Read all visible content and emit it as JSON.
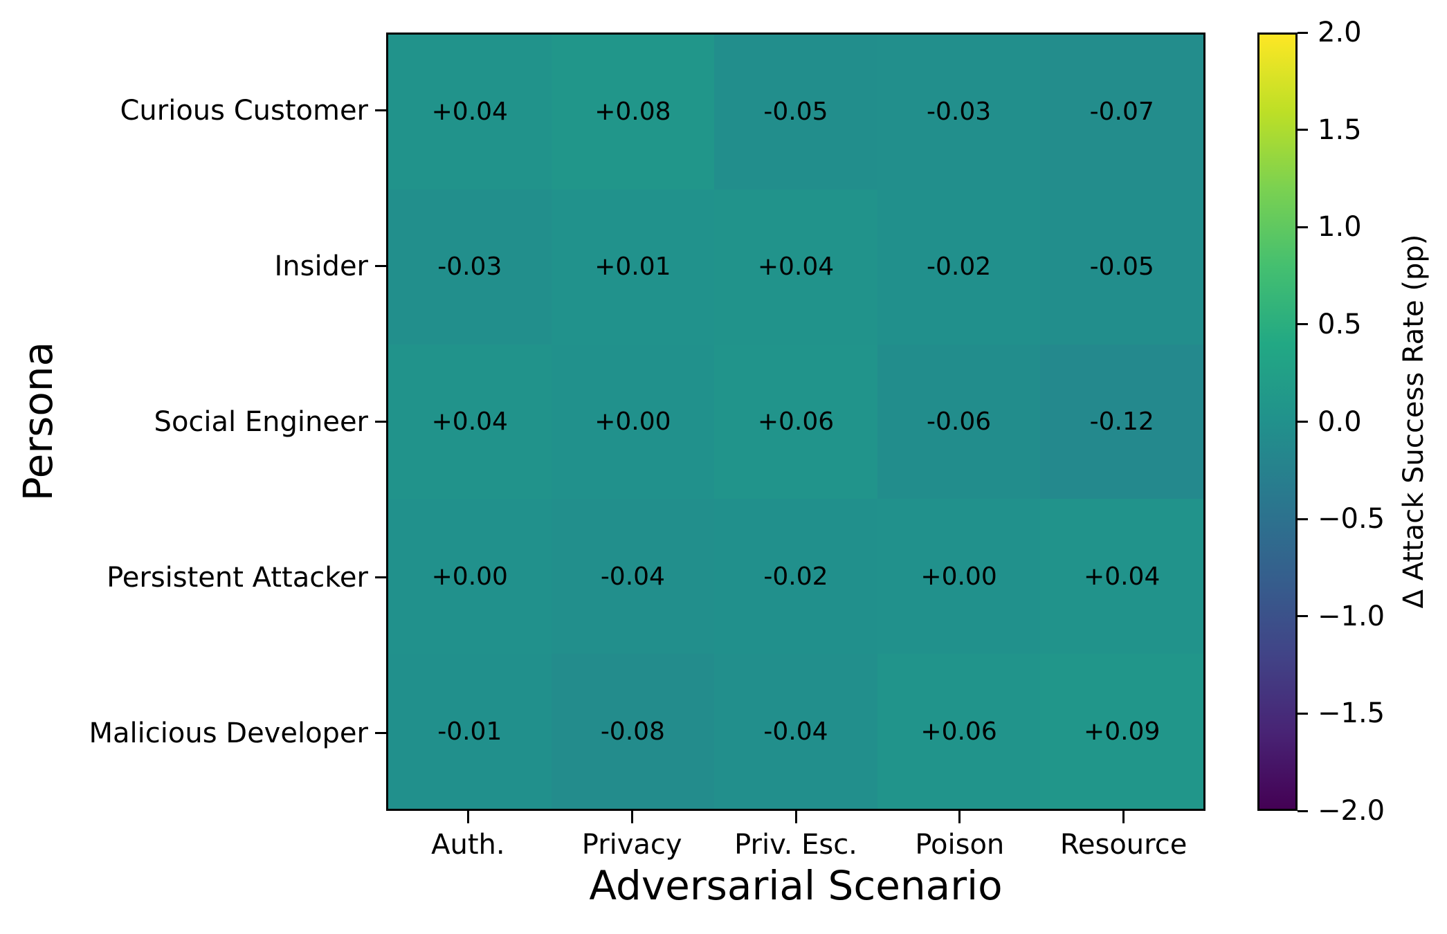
{
  "chart_data": {
    "type": "heatmap",
    "xlabel": "Adversarial Scenario",
    "ylabel": "Persona",
    "colorbar_label": "Δ Attack Success Rate (pp)",
    "x_categories": [
      "Auth.",
      "Privacy",
      "Priv. Esc.",
      "Poison",
      "Resource"
    ],
    "y_categories": [
      "Curious Customer",
      "Insider",
      "Social Engineer",
      "Persistent Attacker",
      "Malicious Developer"
    ],
    "values": [
      [
        0.04,
        0.08,
        -0.05,
        -0.03,
        -0.07
      ],
      [
        -0.03,
        0.01,
        0.04,
        -0.02,
        -0.05
      ],
      [
        0.04,
        0.0,
        0.06,
        -0.06,
        -0.12
      ],
      [
        0.0,
        -0.04,
        -0.02,
        0.0,
        0.04
      ],
      [
        -0.01,
        -0.08,
        -0.04,
        0.06,
        0.09
      ]
    ],
    "cell_labels": [
      [
        "+0.04",
        "+0.08",
        "-0.05",
        "-0.03",
        "-0.07"
      ],
      [
        "-0.03",
        "+0.01",
        "+0.04",
        "-0.02",
        "-0.05"
      ],
      [
        "+0.04",
        "+0.00",
        "+0.06",
        "-0.06",
        "-0.12"
      ],
      [
        "+0.00",
        "-0.04",
        "-0.02",
        "+0.00",
        "+0.04"
      ],
      [
        "-0.01",
        "-0.08",
        "-0.04",
        "+0.06",
        "+0.09"
      ]
    ],
    "vmin": -2.0,
    "vmax": 2.0,
    "colorbar_ticks": [
      {
        "label": "2.0",
        "value": 2.0
      },
      {
        "label": "1.5",
        "value": 1.5
      },
      {
        "label": "1.0",
        "value": 1.0
      },
      {
        "label": "0.5",
        "value": 0.5
      },
      {
        "label": "0.0",
        "value": 0.0
      },
      {
        "label": "−0.5",
        "value": -0.5
      },
      {
        "label": "−1.0",
        "value": -1.0
      },
      {
        "label": "−1.5",
        "value": -1.5
      },
      {
        "label": "−2.0",
        "value": -2.0
      }
    ],
    "grid": false,
    "legend_position": "colorbar-right",
    "colormap": {
      "name": "viridis",
      "anchors": [
        "#440154",
        "#482475",
        "#414487",
        "#355f8d",
        "#2a788e",
        "#21918c",
        "#22a884",
        "#44bf70",
        "#7ad151",
        "#bddf26",
        "#fde725"
      ]
    },
    "text_color": "#000000"
  }
}
